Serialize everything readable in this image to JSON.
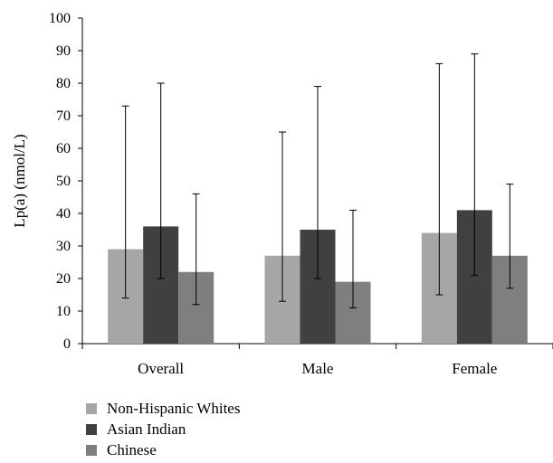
{
  "chart_data": {
    "type": "bar",
    "ylabel": "Lp(a) (nmol/L)",
    "xlabel": "",
    "ylim": [
      0,
      100
    ],
    "yticks": [
      0,
      10,
      20,
      30,
      40,
      50,
      60,
      70,
      80,
      90,
      100
    ],
    "categories": [
      "Overall",
      "Male",
      "Female"
    ],
    "series": [
      {
        "name": "Non-Hispanic Whites",
        "color": "#a6a6a6",
        "values": [
          29,
          27,
          34
        ],
        "err_low": [
          14,
          13,
          15
        ],
        "err_high": [
          73,
          65,
          86
        ]
      },
      {
        "name": "Asian Indian",
        "color": "#404040",
        "values": [
          36,
          35,
          41
        ],
        "err_low": [
          20,
          20,
          21
        ],
        "err_high": [
          80,
          79,
          89
        ]
      },
      {
        "name": "Chinese",
        "color": "#7f7f7f",
        "values": [
          22,
          19,
          27
        ],
        "err_low": [
          12,
          11,
          17
        ],
        "err_high": [
          46,
          41,
          49
        ]
      }
    ],
    "grid": false,
    "legend_position": "bottom-left"
  }
}
